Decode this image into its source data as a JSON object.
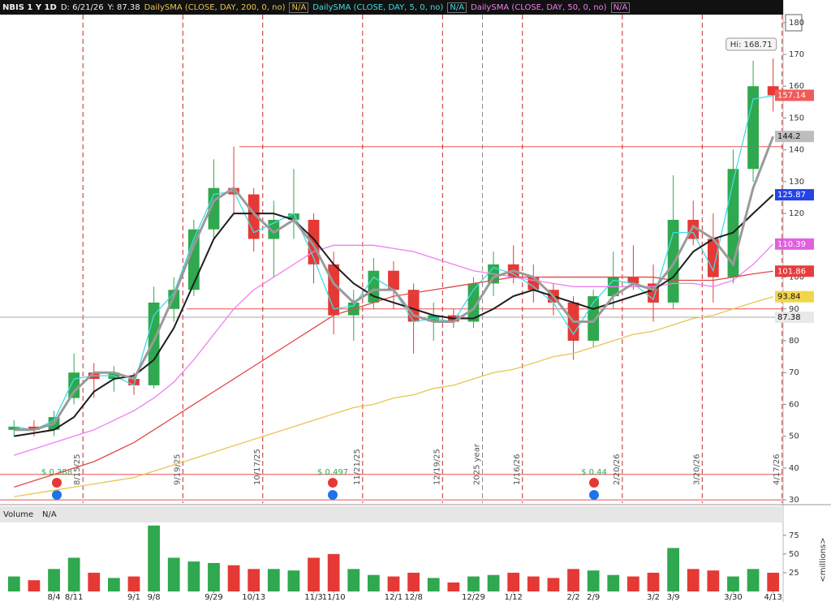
{
  "chart_data": {
    "type": "candlestick",
    "symbol": "NBIS 1 Y 1D",
    "cursor_date": "D: 6/21/26",
    "cursor_price": "Y: 87.38",
    "categories": [
      null,
      null,
      "8/4",
      "8/11",
      null,
      null,
      "9/1",
      "9/8",
      null,
      null,
      "9/29",
      null,
      "10/13",
      null,
      null,
      "11/3",
      "11/10",
      null,
      null,
      "12/1",
      "12/8",
      null,
      null,
      "12/29",
      null,
      "1/12",
      null,
      null,
      "2/2",
      "2/9",
      null,
      null,
      "3/2",
      "3/9",
      null,
      null,
      "3/30",
      null,
      "4/13"
    ],
    "ohlc": {
      "open": [
        52,
        53,
        52,
        62,
        70,
        68,
        68,
        66,
        90,
        96,
        115,
        128,
        126,
        112,
        118,
        118,
        104,
        88,
        92,
        102,
        96,
        86,
        88,
        86,
        98,
        104,
        100,
        96,
        92,
        80,
        94,
        100,
        98,
        92,
        118,
        112,
        100,
        134,
        160
      ],
      "high": [
        55,
        55,
        58,
        76,
        73,
        72,
        70,
        97,
        100,
        118,
        137,
        141,
        128,
        124,
        134,
        120,
        108,
        96,
        106,
        105,
        98,
        92,
        90,
        100,
        108,
        110,
        104,
        98,
        94,
        96,
        108,
        110,
        104,
        132,
        124,
        120,
        140,
        168,
        168.71
      ],
      "low": [
        50,
        50,
        50,
        60,
        62,
        64,
        63,
        65,
        86,
        94,
        112,
        120,
        108,
        100,
        112,
        98,
        82,
        80,
        90,
        90,
        76,
        80,
        84,
        84,
        94,
        98,
        92,
        88,
        74,
        78,
        90,
        96,
        86,
        90,
        110,
        92,
        98,
        130,
        152
      ],
      "close": [
        53,
        52,
        56,
        70,
        68,
        70,
        66,
        92,
        96,
        115,
        128,
        126,
        112,
        118,
        120,
        104,
        88,
        92,
        102,
        96,
        86,
        88,
        86,
        98,
        104,
        100,
        96,
        92,
        80,
        94,
        100,
        98,
        92,
        118,
        112,
        100,
        134,
        160,
        157.14
      ]
    },
    "up_color": "#2fa84f",
    "down_color": "#e53935",
    "close_tag_color": "#f25a5a",
    "high_label": "Hi: 168.71",
    "lines": [
      {
        "name": "DailySMA (CLOSE, DAY, 200, 0, no)",
        "status": "N/A",
        "color": "#e8c550",
        "tag_color": "#f2d64a",
        "values": [
          31,
          32,
          33,
          34,
          35,
          36,
          37,
          39,
          41,
          43,
          45,
          47,
          49,
          51,
          53,
          55,
          57,
          59,
          60,
          62,
          63,
          65,
          66,
          68,
          70,
          71,
          73,
          75,
          76,
          78,
          80,
          82,
          83,
          85,
          87,
          88,
          90,
          92,
          93.84
        ]
      },
      {
        "name": "DailySMA (CLOSE, DAY, 5, 0, no)",
        "status": "N/A",
        "color": "#40dde6",
        "values": [
          53,
          52,
          55,
          68,
          69,
          69,
          66,
          88,
          95,
          112,
          126,
          127,
          114,
          117,
          120,
          106,
          90,
          91,
          100,
          96,
          86,
          87,
          86,
          96,
          103,
          101,
          97,
          92,
          82,
          92,
          99,
          98,
          93,
          114,
          114,
          102,
          130,
          156,
          157
        ]
      },
      {
        "name": "DailySMA (CLOSE, DAY, 50, 0, no)",
        "status": "N/A",
        "color": "#f07ef0",
        "tag_color": "#e060e0",
        "values": [
          44,
          46,
          48,
          50,
          52,
          55,
          58,
          62,
          67,
          74,
          82,
          90,
          96,
          100,
          104,
          108,
          110,
          110,
          110,
          109,
          108,
          106,
          104,
          102,
          101,
          100,
          99,
          98,
          97,
          97,
          97,
          97,
          97,
          98,
          98,
          97,
          99,
          104,
          110.39
        ]
      },
      {
        "color": "#e04848",
        "tag_color": "#e83c3c",
        "values": [
          34,
          36,
          38,
          40,
          42,
          45,
          48,
          52,
          56,
          60,
          64,
          68,
          72,
          76,
          80,
          84,
          88,
          90,
          92,
          94,
          95,
          96,
          97,
          98,
          99,
          100,
          100,
          100,
          100,
          100,
          100,
          100,
          100,
          99,
          99,
          99,
          100,
          101,
          101.86
        ]
      },
      {
        "color": "#1e1e1e",
        "tag_color": "#2443e8",
        "values": [
          50,
          51,
          52,
          56,
          64,
          68,
          69,
          74,
          84,
          98,
          112,
          120,
          120,
          120,
          118,
          112,
          104,
          98,
          94,
          92,
          90,
          88,
          87,
          87,
          90,
          94,
          96,
          94,
          92,
          90,
          92,
          94,
          96,
          100,
          108,
          112,
          114,
          120,
          125.87
        ]
      },
      {
        "color": "#9a9a9a",
        "tag_color": "#bdbdbd",
        "values": [
          52,
          52,
          54,
          64,
          70,
          70,
          68,
          80,
          94,
          110,
          124,
          128,
          120,
          114,
          118,
          110,
          98,
          92,
          96,
          96,
          88,
          86,
          86,
          90,
          100,
          102,
          100,
          94,
          86,
          86,
          94,
          98,
          96,
          104,
          116,
          112,
          104,
          128,
          144.2
        ]
      }
    ],
    "crosshair": 87.38,
    "levels": [
      141,
      90,
      38,
      30
    ],
    "level_color": "#e85050",
    "expirations": [
      {
        "label": "8/15/25",
        "color": "#c62828"
      },
      {
        "label": "9/19/25",
        "color": "#c62828"
      },
      {
        "label": "10/17/25",
        "color": "#c62828"
      },
      {
        "label": "11/21/25",
        "color": "#c62828"
      },
      {
        "label": "12/19/25",
        "color": "#c62828"
      },
      {
        "label": "2025 year",
        "color": "#888888"
      },
      {
        "label": "1/16/26",
        "color": "#c62828"
      },
      {
        "label": "2/20/26",
        "color": "#c62828"
      },
      {
        "label": "3/20/26",
        "color": "#c62828"
      },
      {
        "label": "4/17/26",
        "color": "#c62828"
      }
    ],
    "dividends": [
      "$ 0.388",
      "$ 0.497",
      "$ 0.44"
    ],
    "ylim": [
      29,
      182.5
    ],
    "yticks": [
      30,
      40,
      50,
      60,
      70,
      80,
      90,
      100,
      110,
      120,
      130,
      140,
      150,
      160,
      170,
      180
    ],
    "volume": {
      "title": "Volume",
      "status": "N/A",
      "unit": "<millions>",
      "values": [
        20,
        15,
        30,
        45,
        25,
        18,
        20,
        88,
        45,
        40,
        38,
        35,
        30,
        30,
        28,
        45,
        50,
        30,
        22,
        20,
        25,
        18,
        12,
        20,
        22,
        25,
        20,
        18,
        30,
        28,
        22,
        20,
        25,
        58,
        30,
        28,
        20,
        30,
        25
      ],
      "ylim": [
        0,
        91
      ],
      "yticks": [
        25,
        50,
        75
      ]
    }
  }
}
